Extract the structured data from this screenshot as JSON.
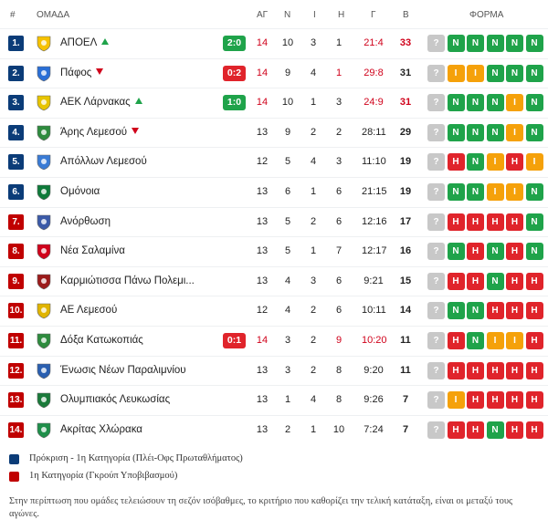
{
  "header": {
    "rank": "#",
    "team": "ΟΜΑΔΑ",
    "played": "ΑΓ",
    "won": "Ν",
    "drawn": "Ι",
    "lost": "Η",
    "goals": "Γ",
    "points": "Β",
    "form": "ΦΟΡΜΑ"
  },
  "colors": {
    "qualify": "#0b3c78",
    "relegation": "#c00000",
    "win": "#1fa34a",
    "draw": "#f5a10a",
    "loss": "#e0242b",
    "unknown": "#c8c8c8",
    "live_win": "#1fa34a",
    "live_loss": "#e0242b"
  },
  "rows": [
    {
      "rank": "1.",
      "zone": "qualify",
      "team": "ΑΠΟΕΛ",
      "trend": "up",
      "live": "2:0",
      "live_state": "win",
      "played": "14",
      "won": "10",
      "drawn": "3",
      "lost": "1",
      "goals": "21:4",
      "points": "33",
      "red_played": true,
      "red_drawn": false,
      "red_lost": false,
      "red_goals": true,
      "red_points": true,
      "logo_icon": "apoel-crest-icon",
      "logo_color": "#f6c200",
      "form": [
        "?",
        "N",
        "N",
        "N",
        "N",
        "N"
      ]
    },
    {
      "rank": "2.",
      "zone": "qualify",
      "team": "Πάφος",
      "trend": "down",
      "live": "0:2",
      "live_state": "loss",
      "played": "14",
      "won": "9",
      "drawn": "4",
      "lost": "1",
      "goals": "29:8",
      "points": "31",
      "red_played": true,
      "red_drawn": false,
      "red_lost": true,
      "red_goals": true,
      "red_points": false,
      "logo_icon": "pafos-crest-icon",
      "logo_color": "#2a6fd6",
      "form": [
        "?",
        "I",
        "I",
        "N",
        "N",
        "N"
      ]
    },
    {
      "rank": "3.",
      "zone": "qualify",
      "team": "ΑΕΚ Λάρνακας",
      "trend": "up",
      "live": "1:0",
      "live_state": "win",
      "played": "14",
      "won": "10",
      "drawn": "1",
      "lost": "3",
      "goals": "24:9",
      "points": "31",
      "red_played": true,
      "red_drawn": false,
      "red_lost": false,
      "red_goals": true,
      "red_points": true,
      "logo_icon": "aek-crest-icon",
      "logo_color": "#e7c400",
      "form": [
        "?",
        "N",
        "N",
        "N",
        "I",
        "N"
      ]
    },
    {
      "rank": "4.",
      "zone": "qualify",
      "team": "Άρης Λεμεσού",
      "trend": "down",
      "live": "",
      "live_state": "",
      "played": "13",
      "won": "9",
      "drawn": "2",
      "lost": "2",
      "goals": "28:11",
      "points": "29",
      "red_played": false,
      "red_drawn": false,
      "red_lost": false,
      "red_goals": false,
      "red_points": false,
      "logo_icon": "aris-crest-icon",
      "logo_color": "#2e8b3e",
      "form": [
        "?",
        "N",
        "N",
        "N",
        "I",
        "N"
      ]
    },
    {
      "rank": "5.",
      "zone": "qualify",
      "team": "Απόλλων Λεμεσού",
      "trend": "",
      "live": "",
      "live_state": "",
      "played": "12",
      "won": "5",
      "drawn": "4",
      "lost": "3",
      "goals": "11:10",
      "points": "19",
      "red_played": false,
      "red_drawn": false,
      "red_lost": false,
      "red_goals": false,
      "red_points": false,
      "logo_icon": "apollon-crest-icon",
      "logo_color": "#3a7bd5",
      "form": [
        "?",
        "H",
        "N",
        "I",
        "H",
        "I"
      ]
    },
    {
      "rank": "6.",
      "zone": "qualify",
      "team": "Ομόνοια",
      "trend": "",
      "live": "",
      "live_state": "",
      "played": "13",
      "won": "6",
      "drawn": "1",
      "lost": "6",
      "goals": "21:15",
      "points": "19",
      "red_played": false,
      "red_drawn": false,
      "red_lost": false,
      "red_goals": false,
      "red_points": false,
      "logo_icon": "omonia-crest-icon",
      "logo_color": "#0f7a3a",
      "form": [
        "?",
        "N",
        "N",
        "I",
        "I",
        "N"
      ]
    },
    {
      "rank": "7.",
      "zone": "relegation",
      "team": "Ανόρθωση",
      "trend": "",
      "live": "",
      "live_state": "",
      "played": "13",
      "won": "5",
      "drawn": "2",
      "lost": "6",
      "goals": "12:16",
      "points": "17",
      "red_played": false,
      "red_drawn": false,
      "red_lost": false,
      "red_goals": false,
      "red_points": false,
      "logo_icon": "anorthosis-crest-icon",
      "logo_color": "#3b5aa8",
      "form": [
        "?",
        "H",
        "H",
        "H",
        "H",
        "N"
      ]
    },
    {
      "rank": "8.",
      "zone": "relegation",
      "team": "Νέα Σαλαμίνα",
      "trend": "",
      "live": "",
      "live_state": "",
      "played": "13",
      "won": "5",
      "drawn": "1",
      "lost": "7",
      "goals": "12:17",
      "points": "16",
      "red_played": false,
      "red_drawn": false,
      "red_lost": false,
      "red_goals": false,
      "red_points": false,
      "logo_icon": "nea-salamina-crest-icon",
      "logo_color": "#d0021b",
      "form": [
        "?",
        "N",
        "H",
        "N",
        "H",
        "N"
      ]
    },
    {
      "rank": "9.",
      "zone": "relegation",
      "team": "Καρμιώτισσα Πάνω Πολεμι...",
      "trend": "",
      "live": "",
      "live_state": "",
      "played": "13",
      "won": "4",
      "drawn": "3",
      "lost": "6",
      "goals": "9:21",
      "points": "15",
      "red_played": false,
      "red_drawn": false,
      "red_lost": false,
      "red_goals": false,
      "red_points": false,
      "logo_icon": "karmiotissa-crest-icon",
      "logo_color": "#9b1b1b",
      "form": [
        "?",
        "H",
        "H",
        "N",
        "H",
        "H"
      ]
    },
    {
      "rank": "10.",
      "zone": "relegation",
      "team": "ΑΕ Λεμεσού",
      "trend": "",
      "live": "",
      "live_state": "",
      "played": "12",
      "won": "4",
      "drawn": "2",
      "lost": "6",
      "goals": "10:11",
      "points": "14",
      "red_played": false,
      "red_drawn": false,
      "red_lost": false,
      "red_goals": false,
      "red_points": false,
      "logo_icon": "ael-crest-icon",
      "logo_color": "#e0b400",
      "form": [
        "?",
        "N",
        "N",
        "H",
        "H",
        "H"
      ]
    },
    {
      "rank": "11.",
      "zone": "relegation",
      "team": "Δόξα Κατωκοπιάς",
      "trend": "",
      "live": "0:1",
      "live_state": "loss",
      "played": "14",
      "won": "3",
      "drawn": "2",
      "lost": "9",
      "goals": "10:20",
      "points": "11",
      "red_played": true,
      "red_drawn": false,
      "red_lost": true,
      "red_goals": true,
      "red_points": false,
      "logo_icon": "doxa-crest-icon",
      "logo_color": "#2e8b3e",
      "form": [
        "?",
        "H",
        "N",
        "I",
        "I",
        "H"
      ]
    },
    {
      "rank": "12.",
      "zone": "relegation",
      "team": "Ένωσις Νέων Παραλιμνίου",
      "trend": "",
      "live": "",
      "live_state": "",
      "played": "13",
      "won": "3",
      "drawn": "2",
      "lost": "8",
      "goals": "9:20",
      "points": "11",
      "red_played": false,
      "red_drawn": false,
      "red_lost": false,
      "red_goals": false,
      "red_points": false,
      "logo_icon": "enp-crest-icon",
      "logo_color": "#2a5fb0",
      "form": [
        "?",
        "H",
        "H",
        "H",
        "H",
        "H"
      ]
    },
    {
      "rank": "13.",
      "zone": "relegation",
      "team": "Ολυμπιακός Λευκωσίας",
      "trend": "",
      "live": "",
      "live_state": "",
      "played": "13",
      "won": "1",
      "drawn": "4",
      "lost": "8",
      "goals": "9:26",
      "points": "7",
      "red_played": false,
      "red_drawn": false,
      "red_lost": false,
      "red_goals": false,
      "red_points": false,
      "logo_icon": "olympiakos-nicosia-crest-icon",
      "logo_color": "#1a7a3a",
      "form": [
        "?",
        "I",
        "H",
        "H",
        "H",
        "H"
      ]
    },
    {
      "rank": "14.",
      "zone": "relegation",
      "team": "Ακρίτας Χλώρακα",
      "trend": "",
      "live": "",
      "live_state": "",
      "played": "13",
      "won": "2",
      "drawn": "1",
      "lost": "10",
      "goals": "7:24",
      "points": "7",
      "red_played": false,
      "red_drawn": false,
      "red_lost": false,
      "red_goals": false,
      "red_points": false,
      "logo_icon": "akritas-crest-icon",
      "logo_color": "#1f8f4a",
      "form": [
        "?",
        "H",
        "H",
        "N",
        "H",
        "H"
      ]
    }
  ],
  "legend": [
    {
      "zone": "qualify",
      "label": "Πρόκριση - 1η Κατηγορία (Πλέι-Οφς Πρωταθλήματος)"
    },
    {
      "zone": "relegation",
      "label": "1η Κατηγορία (Γκρούπ Υποβιβασμού)"
    }
  ],
  "note": "Στην περίπτωση που ομάδες τελειώσουν τη σεζόν ισόβαθμες, το κριτήριο που καθορίζει την τελική κατάταξη, είναι οι μεταξύ τους αγώνες."
}
